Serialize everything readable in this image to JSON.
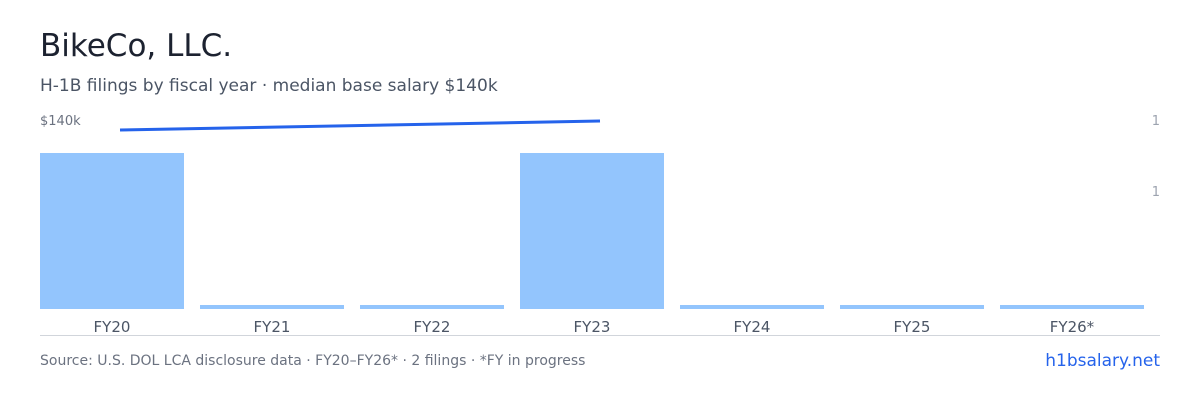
{
  "header": {
    "title": "BikeCo, LLC.",
    "subtitle": "H-1B filings by fiscal year · median base salary $140k"
  },
  "footer": {
    "source": "Source: U.S. DOL LCA disclosure data · FY20–FY26* · 2 filings · *FY in progress",
    "link": "h1bsalary.net"
  },
  "colors": {
    "bar": "#93c5fd",
    "line": "#2563eb",
    "axis": "#d1d5db",
    "tick_text": "#6b7280",
    "right_tick_text": "#9ca3af"
  },
  "chart_data": {
    "type": "bar",
    "categories": [
      "FY20",
      "FY21",
      "FY22",
      "FY23",
      "FY24",
      "FY25",
      "FY26*"
    ],
    "series": [
      {
        "type": "bar",
        "values": [
          1,
          0,
          0,
          1,
          0,
          0,
          0
        ]
      },
      {
        "type": "line",
        "x": [
          "FY20",
          "FY23"
        ],
        "values": [
          140,
          140
        ]
      }
    ],
    "salary_label": "$140k",
    "right_ticks": [
      "1",
      "1"
    ],
    "ylim": [
      0,
      1
    ],
    "grid": false,
    "legend": "none"
  }
}
